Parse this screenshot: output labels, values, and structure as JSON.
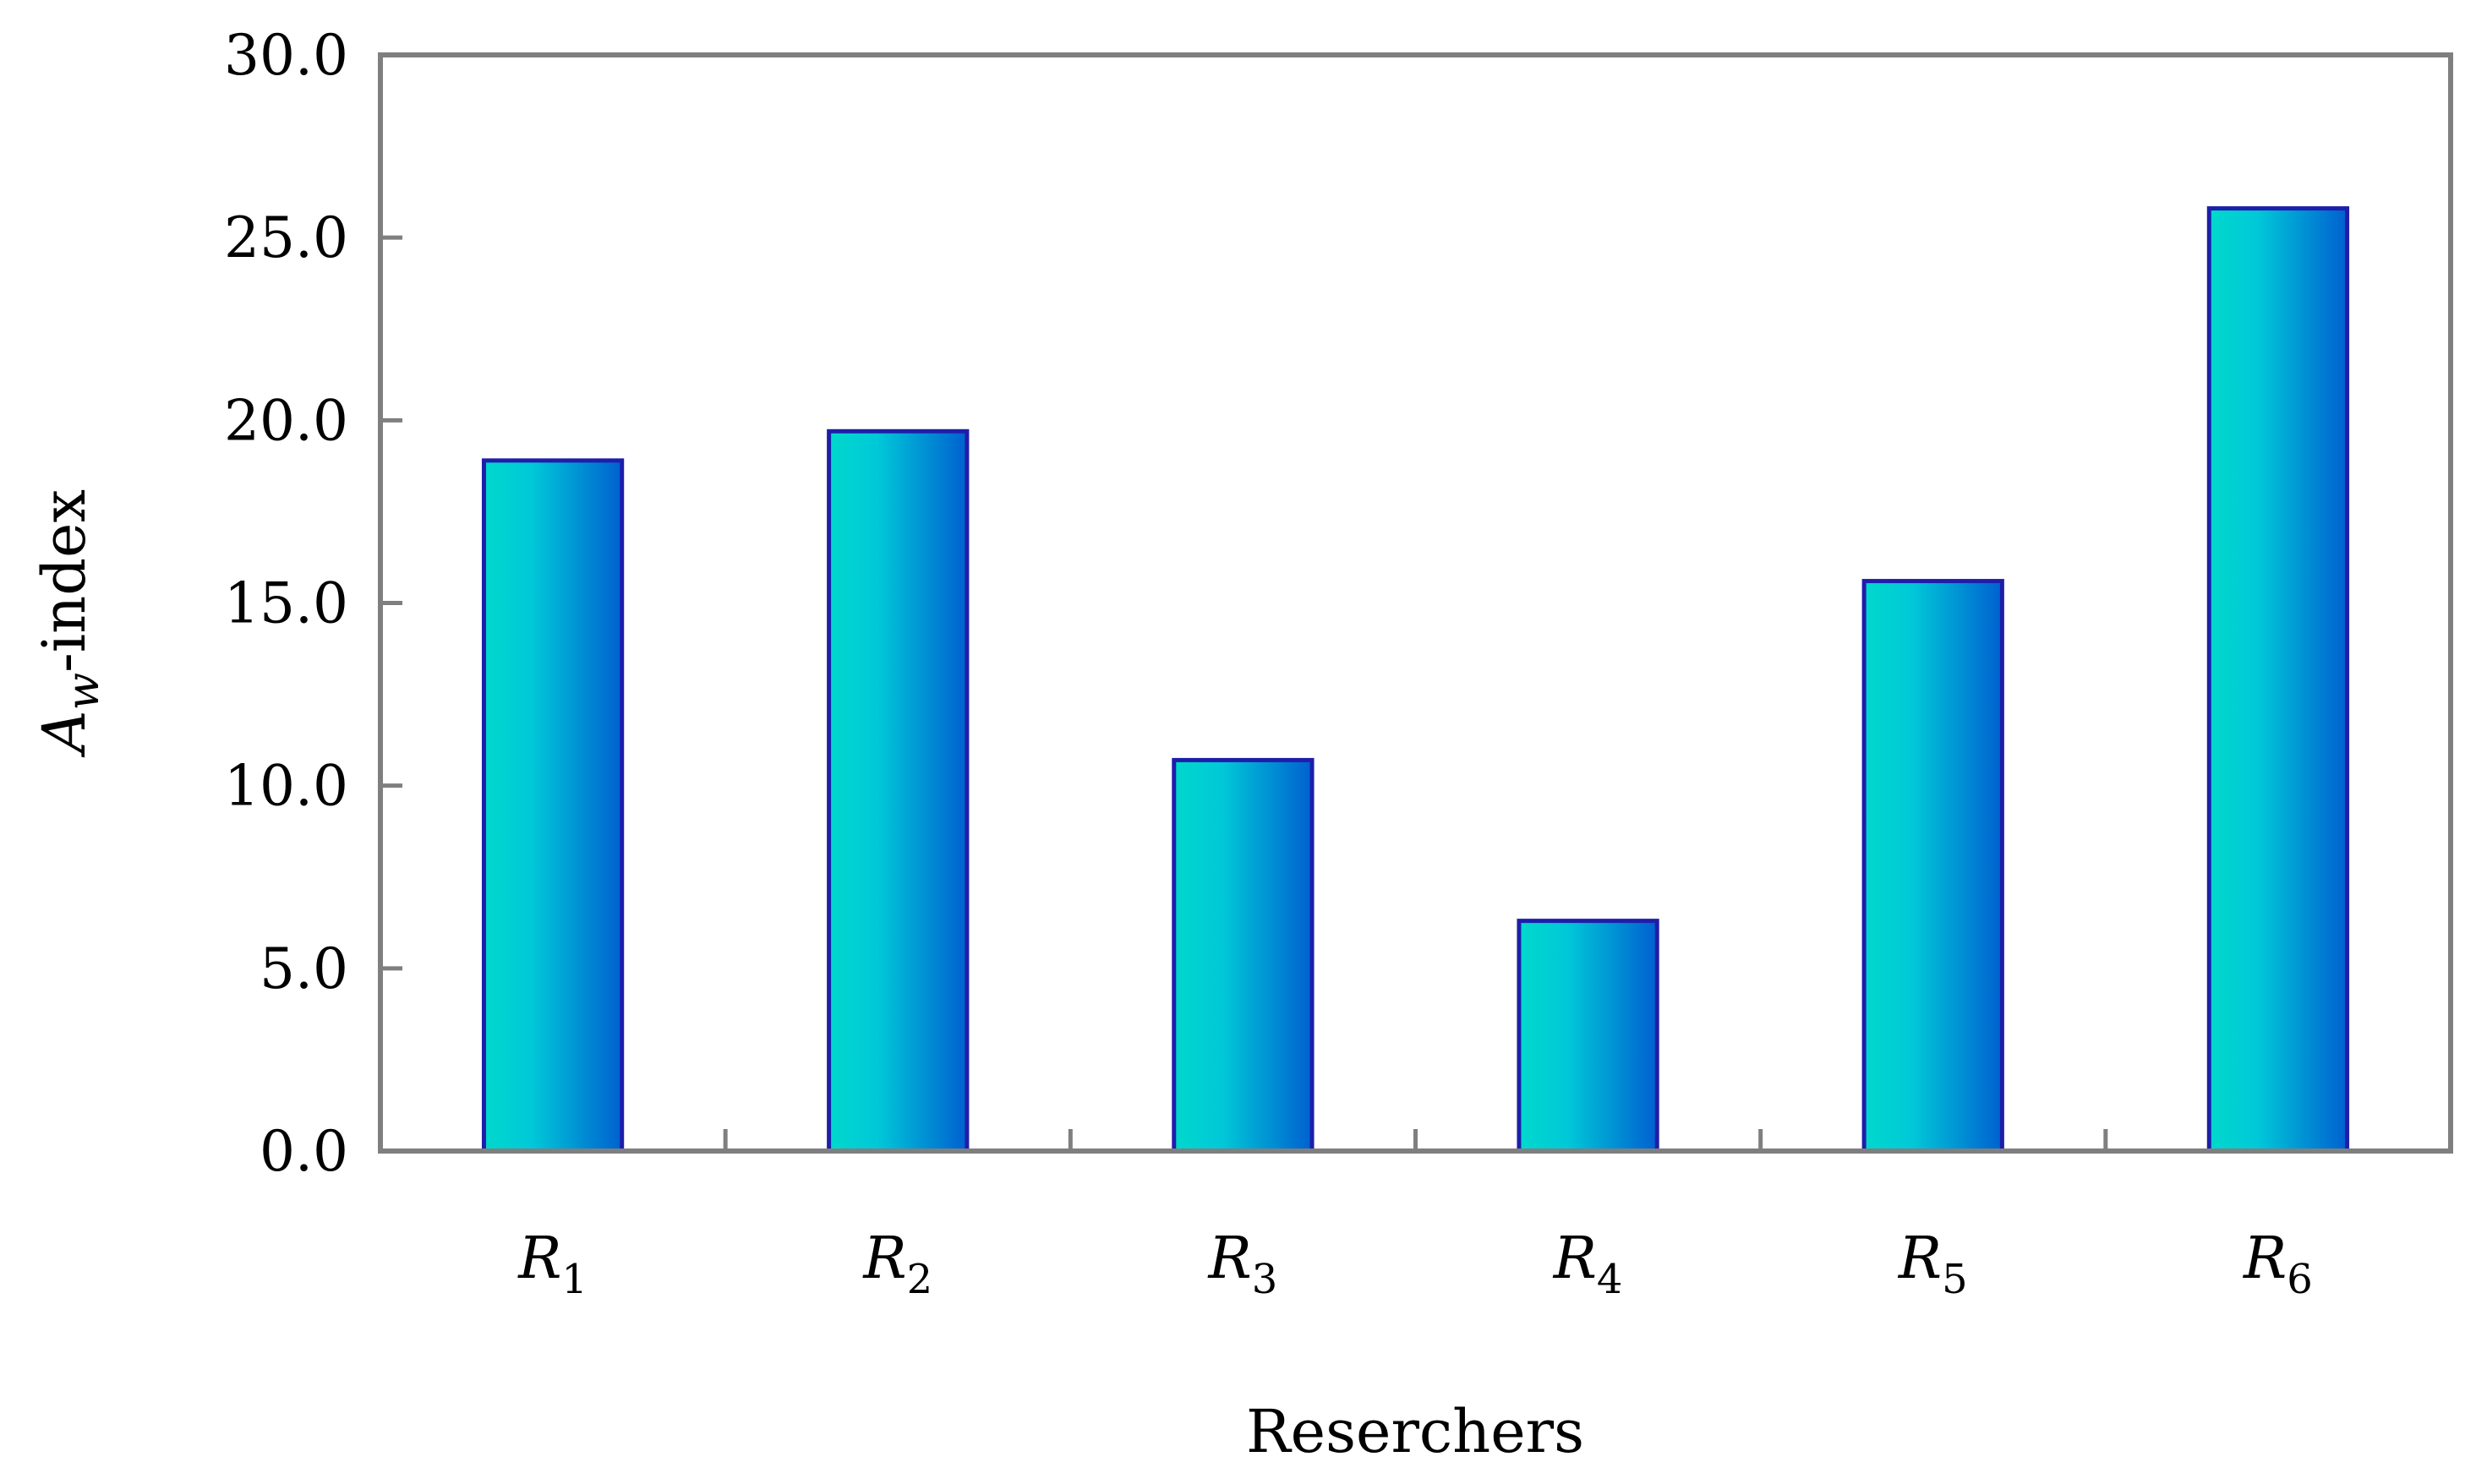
{
  "chart_data": {
    "type": "bar",
    "categories": [
      {
        "base": "R",
        "sub": "1"
      },
      {
        "base": "R",
        "sub": "2"
      },
      {
        "base": "R",
        "sub": "3"
      },
      {
        "base": "R",
        "sub": "4"
      },
      {
        "base": "R",
        "sub": "5"
      },
      {
        "base": "R",
        "sub": "6"
      }
    ],
    "values": [
      18.9,
      19.7,
      10.7,
      6.3,
      15.6,
      25.8
    ],
    "ylim": [
      0,
      30
    ],
    "yticks": [
      "0.0",
      "5.0",
      "10.0",
      "15.0",
      "20.0",
      "25.0",
      "30.0"
    ],
    "xlabel": "Reserchers",
    "ylabel": {
      "base": "A",
      "sub": "w",
      "rest": "-index"
    },
    "grid": false,
    "legend": "none",
    "colors": {
      "bar_gradient_start": "#00D8CC",
      "bar_gradient_end": "#0060D0",
      "bar_outline": "#1E1EAA",
      "axis": "#7F7F7F"
    }
  }
}
